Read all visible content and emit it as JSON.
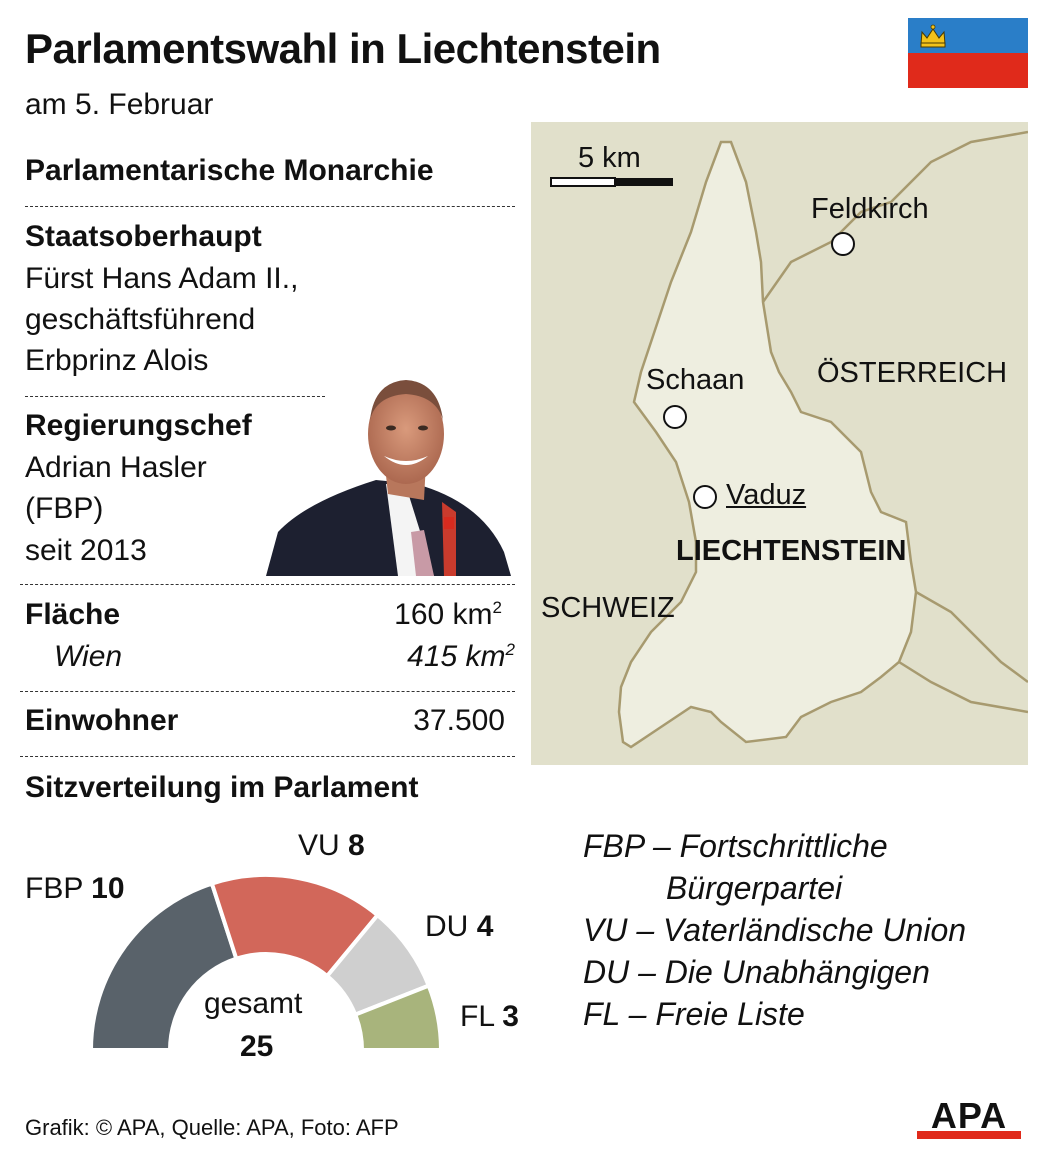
{
  "header": {
    "title": "Parlamentswahl in Liechtenstein",
    "subtitle": "am 5. Februar"
  },
  "flag": {
    "name": "liechtenstein-flag",
    "colors": {
      "top": "#2a7ec8",
      "bottom": "#e02a1b",
      "crown": "#f2c21b"
    }
  },
  "info": {
    "government_type": "Parlamentarische Monarchie",
    "head_of_state_label": "Staatsoberhaupt",
    "head_of_state_lines": [
      "Fürst Hans Adam II.,",
      "geschäftsführend",
      "Erbprinz Alois"
    ],
    "head_of_government_label": "Regierungschef",
    "head_of_government_lines": [
      "Adrian Hasler",
      "(FBP)",
      "seit 2013"
    ],
    "area_label": "Fläche",
    "area_value": "160 km",
    "area_unit_sup": "2",
    "vienna_label": "Wien",
    "vienna_value": "415  km",
    "vienna_unit_sup": "2",
    "population_label": "Einwohner",
    "population_value": "37.500"
  },
  "map": {
    "scale_label": "5 km",
    "places": {
      "feldkirch": "Feldkirch",
      "schaan": "Schaan",
      "vaduz": "Vaduz"
    },
    "countries": {
      "austria": "ÖSTERREICH",
      "liechtenstein": "LIECHTENSTEIN",
      "switzerland": "SCHWEIZ"
    },
    "colors": {
      "background": "#e1e0cb",
      "country": "#eeeee0",
      "border": "#a79a6f"
    }
  },
  "seats": {
    "heading": "Sitzverteilung im Parlament",
    "total_label": "gesamt",
    "total_value": "25",
    "parties": [
      {
        "abbr": "FBP",
        "seats": 10,
        "seats_label": "10",
        "color": "#59626a"
      },
      {
        "abbr": "VU",
        "seats": 8,
        "seats_label": "8",
        "color": "#d2675a"
      },
      {
        "abbr": "DU",
        "seats": 4,
        "seats_label": "4",
        "color": "#cfcfcf"
      },
      {
        "abbr": "FL",
        "seats": 3,
        "seats_label": "3",
        "color": "#a8b47c"
      }
    ]
  },
  "legend": [
    "FBP – Fortschrittliche",
    "Bürgerpartei",
    "VU – Vaterländische Union",
    "DU – Die Unabhängigen",
    "FL – Freie Liste"
  ],
  "footer": {
    "credit": "Grafik: © APA, Quelle: APA, Foto: AFP"
  },
  "logo": {
    "text": "APA",
    "stripe_color": "#e02a1b"
  }
}
